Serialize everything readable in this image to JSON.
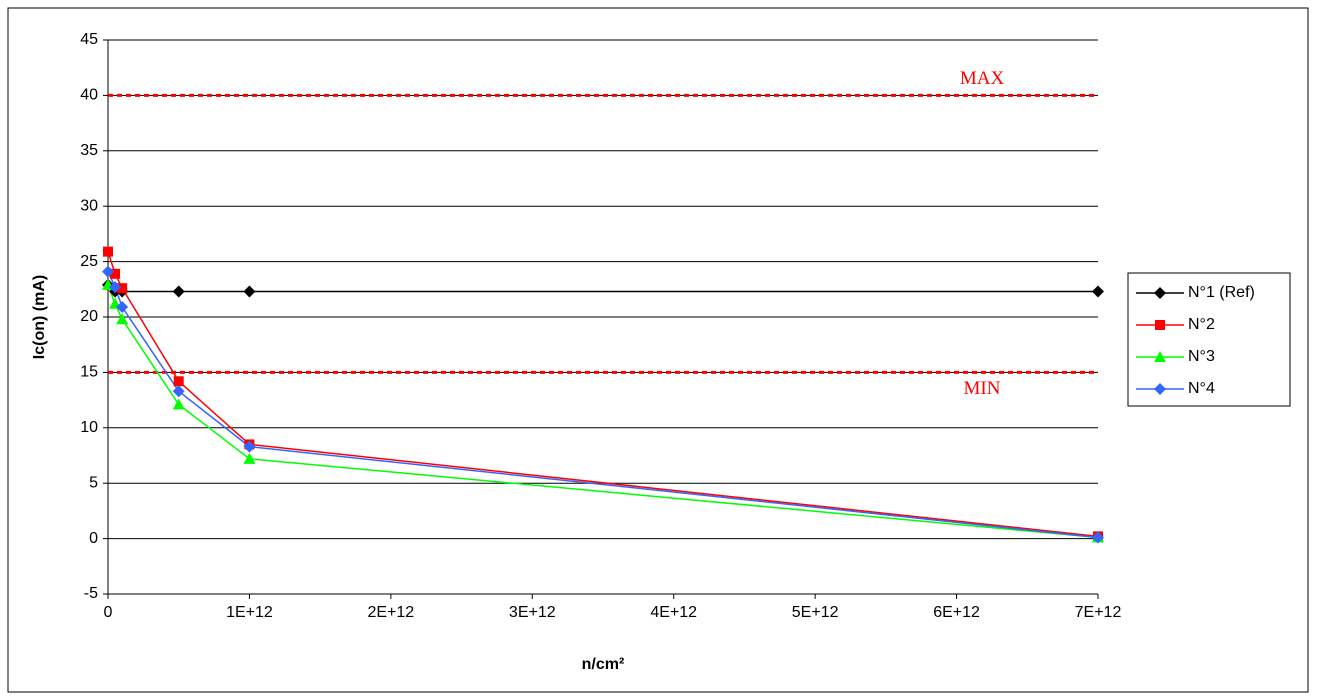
{
  "chart_data": {
    "type": "line",
    "x_label": "n/cm²",
    "y_label": "Ic(on) (mA)",
    "x": [
      0,
      50000000000,
      100000000000,
      500000000000,
      1000000000000,
      7000000000000
    ],
    "series": [
      {
        "name": "N°1 (Ref)",
        "color": "#000000",
        "marker": "diamond",
        "values": [
          22.9,
          22.3,
          22.3,
          22.3,
          22.3,
          22.3
        ]
      },
      {
        "name": "N°2",
        "color": "#ff0000",
        "marker": "square",
        "values": [
          25.9,
          23.9,
          22.6,
          14.2,
          8.5,
          0.2
        ]
      },
      {
        "name": "N°3",
        "color": "#00ff00",
        "marker": "triangle",
        "values": [
          22.9,
          21.2,
          19.8,
          12.1,
          7.2,
          0.1
        ]
      },
      {
        "name": "N°4",
        "color": "#3366ff",
        "marker": "diamond",
        "values": [
          24.1,
          22.7,
          20.9,
          13.3,
          8.3,
          0.1
        ]
      }
    ],
    "reference_lines": [
      {
        "value": 40,
        "label": "MAX",
        "color": "#ff0000"
      },
      {
        "value": 15,
        "label": "MIN",
        "color": "#ff0000"
      }
    ],
    "xlim": [
      0,
      7000000000000
    ],
    "xticks": [
      0,
      {
        "value": 1000000000000,
        "label": "1E+12"
      },
      {
        "value": 2000000000000,
        "label": "2E+12"
      },
      {
        "value": 3000000000000,
        "label": "3E+12"
      },
      {
        "value": 4000000000000,
        "label": "4E+12"
      },
      {
        "value": 5000000000000,
        "label": "5E+12"
      },
      {
        "value": 6000000000000,
        "label": "6E+12"
      },
      {
        "value": 7000000000000,
        "label": "7E+12"
      }
    ],
    "ylim": [
      -5,
      45
    ],
    "yticks": [
      -5,
      0,
      5,
      10,
      15,
      20,
      25,
      30,
      35,
      40,
      45
    ],
    "grid": true,
    "legend": "right"
  }
}
